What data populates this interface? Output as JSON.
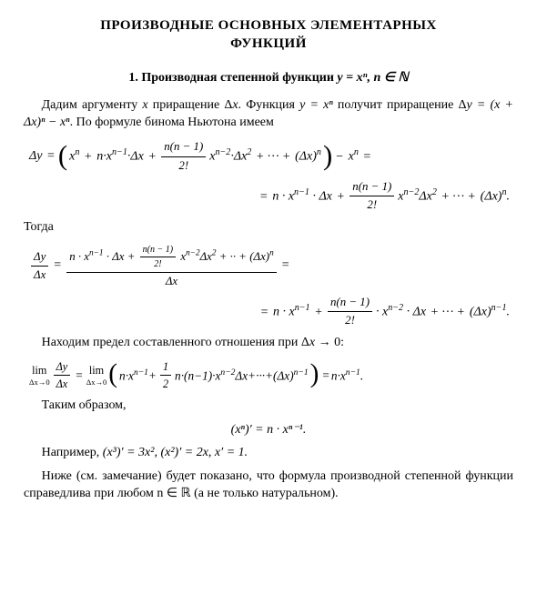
{
  "title_line1": "ПРОИЗВОДНЫЕ ОСНОВНЫХ ЭЛЕМЕНТАРНЫХ",
  "title_line2": "ФУНКЦИЙ",
  "section_no": "1.",
  "section_txt": "Производная степенной функции",
  "section_fn": "y = xⁿ, n ∈ ℕ",
  "p1a": "Дадим аргументу ",
  "p1b": " приращение Δ",
  "p1c": ". Функция ",
  "p1d": " получит приращение Δ",
  "p1e": ". По формуле бинома Ньютона имеем",
  "x": "x",
  "y": "y",
  "n": "n",
  "eq1_rhs": " = (x + Δx)ⁿ − xⁿ",
  "eq_yxn": "y = xⁿ",
  "dy": "Δy",
  "dx": "Δx",
  "togda": "Тогда",
  "line_find": "Находим предел составленного отношения при Δ",
  "line_find_tail": " → 0:",
  "takim": "Таким образом,",
  "final_eq": "(xⁿ)′ = n · xⁿ⁻¹.",
  "ex_lead": "Например, ",
  "ex_body": "(x³)′ = 3x², (x²)′ = 2x, x′ = 1.",
  "closing": "Ниже (см. замечание) будет показано, что формула производной степенной функции справедлива при любом n ∈ ℝ (а не только натуральном).",
  "nn1": "n(n − 1)",
  "two_fact": "2!",
  "half_num": "1",
  "half_den": "2",
  "lim": "lim",
  "dx_to_0": "Δx→0",
  "colors": {
    "text": "#000000",
    "bg": "#ffffff"
  },
  "fontsize_body": 14,
  "fontsize_title": 15
}
